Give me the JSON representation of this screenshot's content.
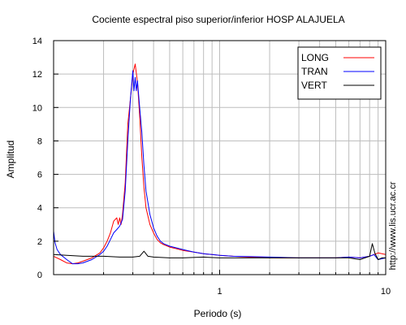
{
  "chart_data": {
    "type": "line",
    "title": "Cociente espectral piso superior/inferior  HOSP ALAJUELA",
    "xlabel": "Periodo (s)",
    "ylabel": "Amplitud",
    "side_label": "http://www.lis.ucr.ac.cr",
    "x_scale": "log",
    "xlim": [
      0.1,
      10
    ],
    "ylim": [
      0,
      14
    ],
    "x_ticks": [
      {
        "value": 1,
        "label": "1"
      },
      {
        "value": 10,
        "label": "10"
      }
    ],
    "x_minor_grid": [
      0.2,
      0.3,
      0.4,
      0.5,
      0.6,
      0.7,
      0.8,
      0.9,
      2,
      3,
      4,
      5,
      6,
      7,
      8,
      9
    ],
    "y_ticks": [
      0,
      2,
      4,
      6,
      8,
      10,
      12,
      14
    ],
    "grid": true,
    "legend_position": "top-right",
    "series": [
      {
        "name": "LONG",
        "color": "#ff0000",
        "x": [
          0.1,
          0.11,
          0.12,
          0.13,
          0.14,
          0.15,
          0.17,
          0.19,
          0.2,
          0.21,
          0.22,
          0.23,
          0.24,
          0.245,
          0.25,
          0.255,
          0.26,
          0.27,
          0.28,
          0.29,
          0.3,
          0.31,
          0.32,
          0.33,
          0.34,
          0.35,
          0.36,
          0.38,
          0.4,
          0.42,
          0.44,
          0.46,
          0.5,
          0.55,
          0.6,
          0.7,
          0.8,
          0.9,
          1.0,
          1.2,
          1.5,
          2,
          3,
          4,
          5,
          6,
          7,
          8,
          9,
          10
        ],
        "y": [
          1.1,
          0.9,
          0.7,
          0.65,
          0.7,
          0.8,
          1.0,
          1.3,
          1.6,
          2.0,
          2.5,
          3.2,
          3.4,
          3.0,
          3.4,
          3.0,
          3.6,
          5.5,
          9.0,
          10.5,
          12.0,
          12.6,
          11.5,
          9.5,
          7.0,
          5.2,
          4.0,
          3.0,
          2.5,
          2.1,
          1.9,
          1.8,
          1.65,
          1.55,
          1.45,
          1.35,
          1.25,
          1.2,
          1.15,
          1.1,
          1.05,
          1.0,
          1.0,
          1.0,
          1.0,
          1.05,
          1.0,
          1.1,
          1.3,
          1.2
        ]
      },
      {
        "name": "TRAN",
        "color": "#0000ff",
        "x": [
          0.1,
          0.102,
          0.105,
          0.11,
          0.12,
          0.13,
          0.14,
          0.15,
          0.17,
          0.19,
          0.2,
          0.21,
          0.22,
          0.23,
          0.24,
          0.25,
          0.26,
          0.27,
          0.28,
          0.29,
          0.3,
          0.305,
          0.31,
          0.315,
          0.32,
          0.33,
          0.34,
          0.35,
          0.36,
          0.38,
          0.4,
          0.42,
          0.44,
          0.46,
          0.5,
          0.55,
          0.6,
          0.7,
          0.8,
          0.9,
          1.0,
          1.2,
          1.5,
          2,
          3,
          4,
          5,
          6,
          7,
          8,
          8.5,
          9,
          10
        ],
        "y": [
          2.6,
          1.9,
          1.5,
          1.2,
          0.9,
          0.65,
          0.65,
          0.7,
          0.9,
          1.2,
          1.4,
          1.7,
          2.1,
          2.5,
          2.7,
          2.9,
          3.3,
          5.0,
          8.0,
          10.5,
          12.2,
          11.0,
          11.8,
          11.0,
          11.6,
          10.0,
          8.5,
          6.5,
          5.0,
          3.6,
          2.8,
          2.3,
          2.0,
          1.85,
          1.7,
          1.6,
          1.5,
          1.35,
          1.25,
          1.2,
          1.15,
          1.1,
          1.08,
          1.05,
          1.0,
          1.0,
          1.0,
          1.05,
          1.0,
          1.1,
          1.2,
          0.9,
          1.0
        ]
      },
      {
        "name": "VERT",
        "color": "#000000",
        "x": [
          0.1,
          0.12,
          0.15,
          0.2,
          0.25,
          0.3,
          0.33,
          0.35,
          0.37,
          0.4,
          0.5,
          0.6,
          0.8,
          1.0,
          1.5,
          2,
          3,
          4,
          5,
          6,
          7,
          8,
          8.3,
          8.6,
          9,
          9.5,
          10
        ],
        "y": [
          1.2,
          1.15,
          1.1,
          1.1,
          1.05,
          1.05,
          1.1,
          1.4,
          1.1,
          1.05,
          1.0,
          1.0,
          1.05,
          1.0,
          1.0,
          1.0,
          1.0,
          1.0,
          1.0,
          1.0,
          0.9,
          1.1,
          1.85,
          1.3,
          0.9,
          1.0,
          1.0
        ]
      }
    ]
  }
}
